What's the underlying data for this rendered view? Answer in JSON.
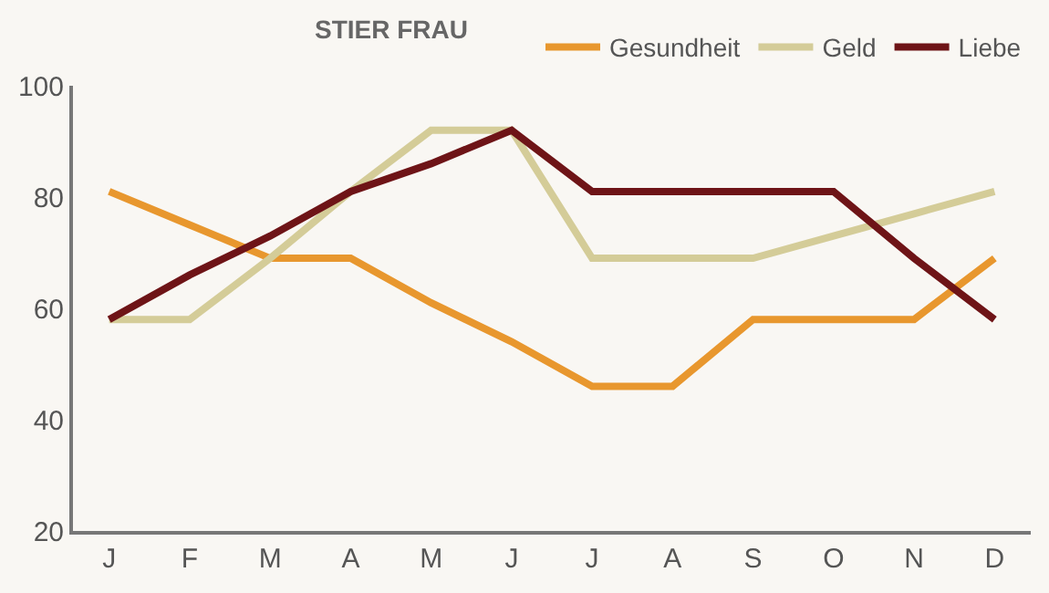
{
  "chart_data": {
    "type": "line",
    "title": "STIER FRAU",
    "categories": [
      "J",
      "F",
      "M",
      "A",
      "M",
      "J",
      "J",
      "A",
      "S",
      "O",
      "N",
      "D"
    ],
    "series": [
      {
        "name": "Gesundheit",
        "color": "#e8972e",
        "values": [
          81,
          75,
          69,
          69,
          61,
          54,
          46,
          46,
          58,
          58,
          58,
          69
        ]
      },
      {
        "name": "Geld",
        "color": "#d4cc98",
        "values": [
          58,
          58,
          69,
          81,
          92,
          92,
          69,
          69,
          69,
          73,
          77,
          81
        ]
      },
      {
        "name": "Liebe",
        "color": "#6e1417",
        "values": [
          58,
          66,
          73,
          81,
          86,
          92,
          81,
          81,
          81,
          81,
          69,
          58
        ]
      }
    ],
    "ylim": [
      20,
      100
    ],
    "yticks": [
      20,
      40,
      60,
      80,
      100
    ],
    "grid": false,
    "legend": "top right",
    "marker": "none",
    "line_style": "solid"
  }
}
